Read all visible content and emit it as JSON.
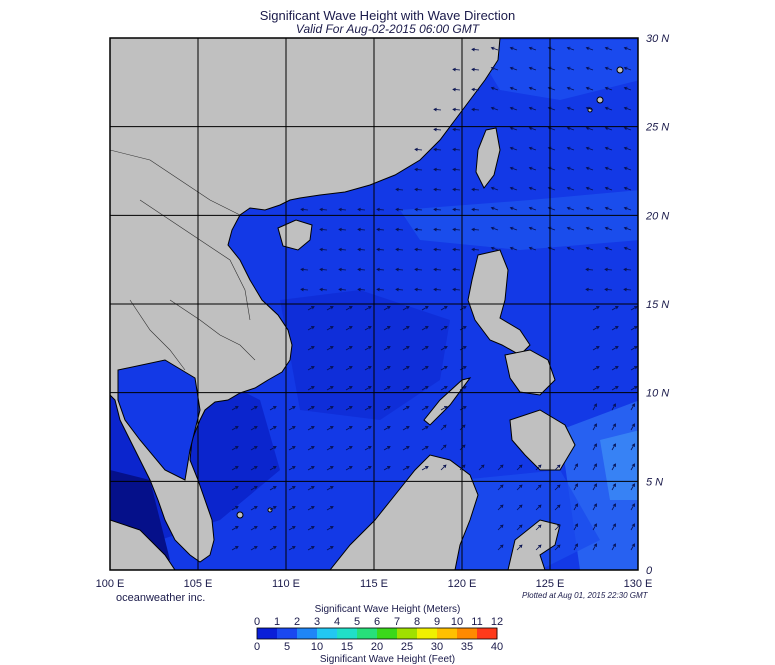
{
  "header": {
    "title": "Significant Wave Height with Wave Direction",
    "subtitle": "Valid For Aug-02-2015 06:00 GMT"
  },
  "axes": {
    "lon_labels": [
      "100 E",
      "105 E",
      "110 E",
      "115 E",
      "120 E",
      "125 E",
      "130 E"
    ],
    "lon_values": [
      100,
      105,
      110,
      115,
      120,
      125,
      130
    ],
    "lat_labels": [
      "30 N",
      "25 N",
      "20 N",
      "15 N",
      "10 N",
      "5 N",
      "0"
    ],
    "lat_values": [
      30,
      25,
      20,
      15,
      10,
      5,
      0
    ],
    "lon_range": [
      100,
      130
    ],
    "lat_range": [
      0,
      30
    ]
  },
  "footer": {
    "credit": "oceanweather inc.",
    "plotted": "Plotted at Aug 01, 2015 22:30 GMT"
  },
  "colorbar": {
    "title_meters": "Significant Wave Height (Meters)",
    "title_feet": "Significant Wave Height (Feet)",
    "meter_ticks": [
      "0",
      "1",
      "2",
      "3",
      "4",
      "5",
      "6",
      "7",
      "8",
      "9",
      "10",
      "11",
      "12"
    ],
    "feet_ticks": [
      "0",
      "5",
      "10",
      "15",
      "20",
      "25",
      "30",
      "35",
      "40"
    ],
    "colors": [
      "#0a1fd8",
      "#1a48f0",
      "#1f86f7",
      "#22c8f2",
      "#20e0c8",
      "#27e07a",
      "#3bd81a",
      "#a0e000",
      "#f0f000",
      "#ffc000",
      "#ff8a00",
      "#ff3a1a"
    ]
  },
  "colors": {
    "land": "#c0c0c0",
    "sea_base": "#1339e6",
    "sea_dark": "#0a1bb8",
    "sea_light": "#2b63ee",
    "grid": "#000000"
  }
}
